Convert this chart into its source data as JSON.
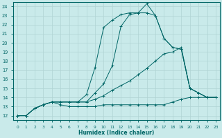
{
  "xlabel": "Humidex (Indice chaleur)",
  "bg_color": "#c9eaea",
  "line_color": "#006666",
  "grid_color": "#b0d4d4",
  "xlim": [
    -0.5,
    23.5
  ],
  "ylim": [
    11.5,
    24.5
  ],
  "xticks": [
    0,
    1,
    2,
    3,
    4,
    5,
    6,
    7,
    8,
    9,
    10,
    11,
    12,
    13,
    14,
    15,
    16,
    17,
    18,
    19,
    20,
    21,
    22,
    23
  ],
  "yticks": [
    12,
    13,
    14,
    15,
    16,
    17,
    18,
    19,
    20,
    21,
    22,
    23,
    24
  ],
  "series": [
    {
      "x": [
        0,
        1,
        2,
        3,
        4,
        5,
        6,
        7,
        8,
        9,
        10,
        11,
        12,
        13,
        14,
        15,
        16,
        17,
        18,
        19,
        20,
        21,
        22,
        23
      ],
      "y": [
        12,
        12,
        12.8,
        13.2,
        13.5,
        13.2,
        13.0,
        13.0,
        13.0,
        13.0,
        13.2,
        13.2,
        13.2,
        13.2,
        13.2,
        13.2,
        13.2,
        13.2,
        13.5,
        13.8,
        14.0,
        14.0,
        14.0,
        14.0
      ]
    },
    {
      "x": [
        0,
        1,
        2,
        3,
        4,
        5,
        6,
        7,
        8,
        9,
        10,
        11,
        12,
        13,
        14,
        15,
        16,
        17,
        18,
        19,
        20,
        21,
        22,
        23
      ],
      "y": [
        12,
        12,
        12.8,
        13.2,
        13.5,
        13.5,
        13.5,
        13.5,
        13.5,
        13.8,
        14.2,
        14.8,
        15.3,
        15.8,
        16.5,
        17.2,
        18.0,
        18.8,
        19.0,
        19.5,
        15.0,
        14.5,
        14.0,
        14.0
      ]
    },
    {
      "x": [
        0,
        1,
        2,
        3,
        4,
        5,
        6,
        7,
        8,
        9,
        10,
        11,
        12,
        13,
        14,
        15,
        16,
        17,
        18,
        19,
        20,
        21,
        22,
        23
      ],
      "y": [
        12,
        12,
        12.8,
        13.2,
        13.5,
        13.5,
        13.5,
        13.5,
        13.5,
        14.5,
        15.5,
        17.5,
        21.8,
        23.1,
        23.3,
        23.3,
        23.0,
        20.5,
        19.5,
        19.3,
        15.0,
        14.5,
        14.0,
        14.0
      ]
    },
    {
      "x": [
        0,
        1,
        2,
        3,
        4,
        5,
        6,
        7,
        8,
        9,
        10,
        11,
        12,
        13,
        14,
        15,
        16,
        17,
        18,
        19,
        20,
        21,
        22,
        23
      ],
      "y": [
        12,
        12,
        12.8,
        13.2,
        13.5,
        13.5,
        13.5,
        13.5,
        14.3,
        17.3,
        21.7,
        22.5,
        23.1,
        23.3,
        23.3,
        24.3,
        23.0,
        20.5,
        19.5,
        19.3,
        15.0,
        14.5,
        14.0,
        14.0
      ]
    }
  ]
}
